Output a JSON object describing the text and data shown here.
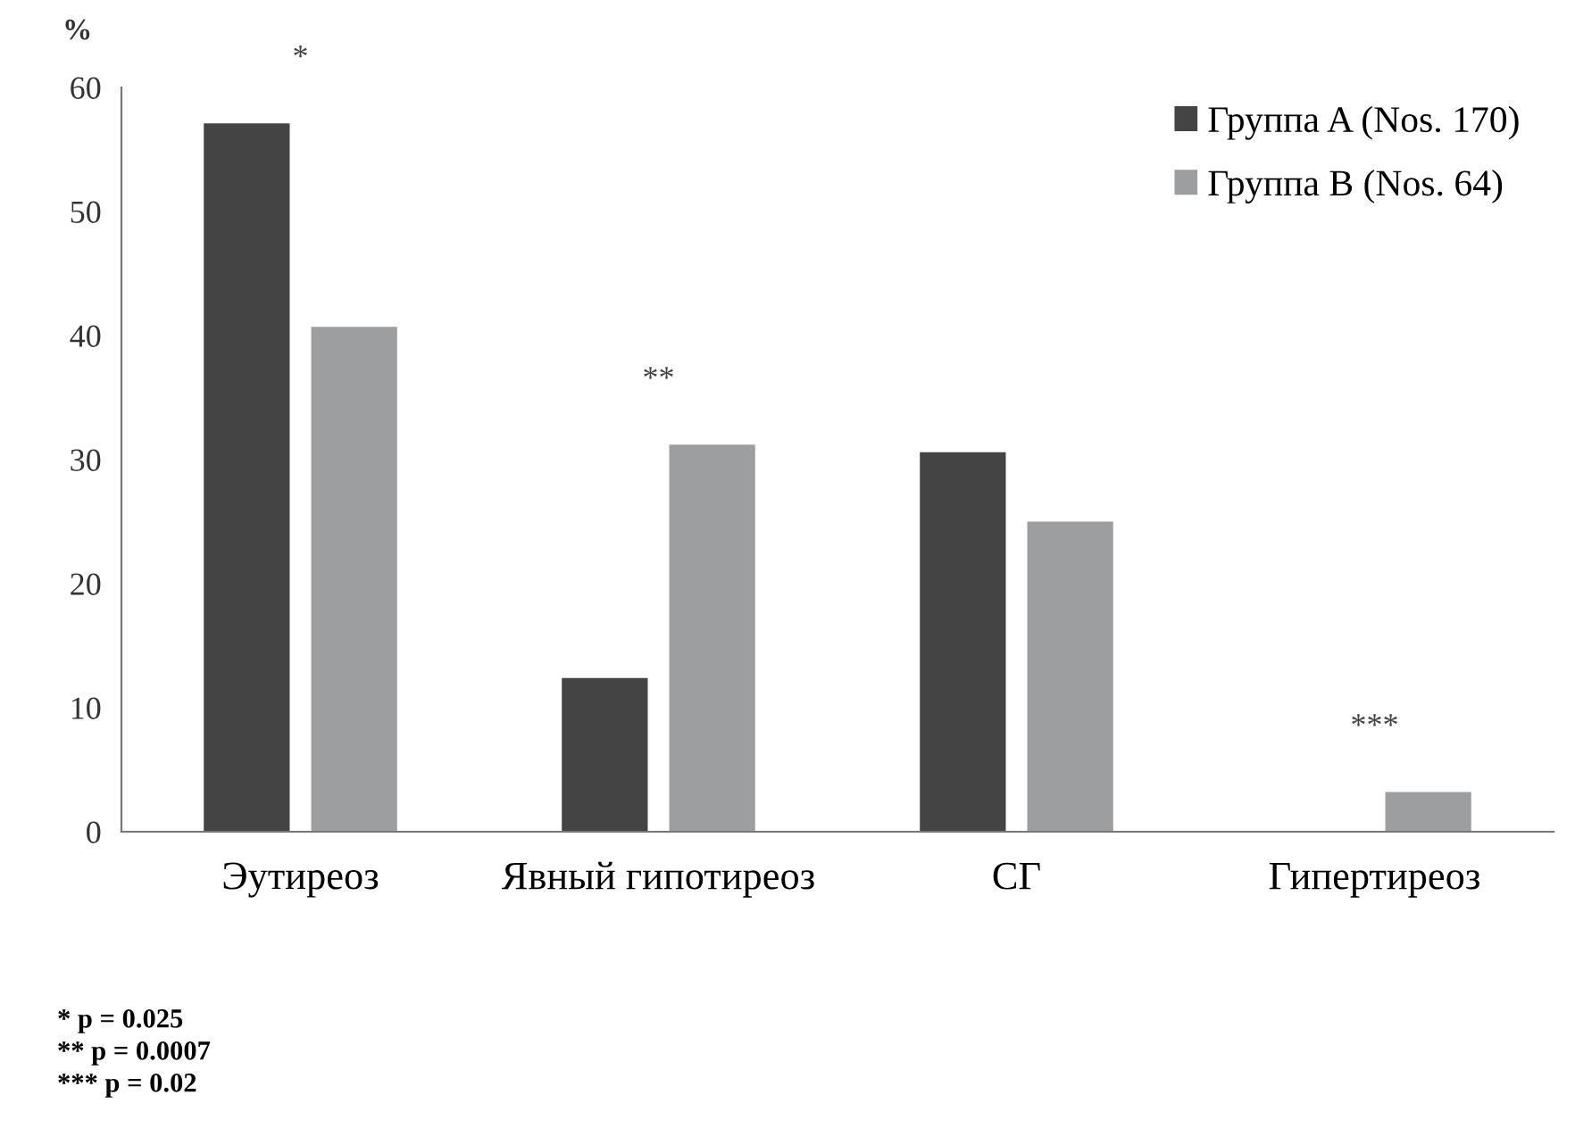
{
  "chart_data": {
    "type": "bar",
    "ylabel": "%",
    "categories": [
      "Эутиреоз",
      "Явный гипотиреоз",
      "СГ",
      "Гипертиреоз"
    ],
    "series": [
      {
        "name": "Группа A (Nos. 170)",
        "color": "#444444",
        "values": [
          57.1,
          12.4,
          30.6,
          0
        ]
      },
      {
        "name": "Группа B (Nos. 64)",
        "color": "#9d9ea0",
        "values": [
          40.7,
          31.2,
          25.0,
          3.2
        ]
      }
    ],
    "ylim": [
      0,
      60
    ],
    "yticks": [
      0,
      10,
      20,
      30,
      40,
      50,
      60
    ],
    "grid": false,
    "legend": "top right",
    "annotations": [
      "*",
      "**",
      "***",
      "* p = 0.025",
      "** p = 0.0007",
      "*** p = 0.02"
    ]
  }
}
